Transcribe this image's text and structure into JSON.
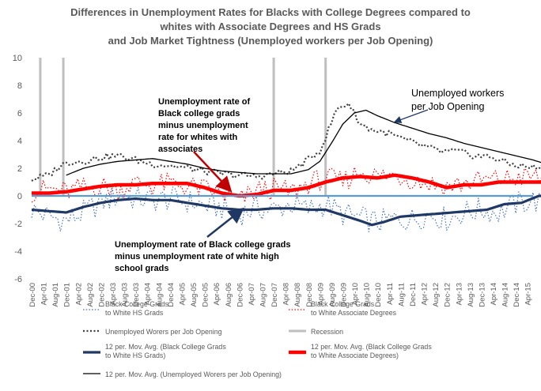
{
  "chart_data": {
    "type": "line",
    "title_lines": [
      "Differences in Unemployment Rates for Blacks with College Degrees compared to",
      "whites with Associate Degrees and HS Grads",
      "and Job Market Tightness (Unemployed workers per Job Opening)"
    ],
    "ylim": [
      -6,
      10
    ],
    "yticks": [
      "10",
      "8",
      "6",
      "4",
      "2",
      "0",
      "-2",
      "-4",
      "-6"
    ],
    "x_tick_labels": [
      "Dec-00",
      "Apr-01",
      "Aug-01",
      "Dec-01",
      "Apr-02",
      "Aug-02",
      "Dec-02",
      "Apr-03",
      "Aug-03",
      "Dec-03",
      "Apr-04",
      "Aug-04",
      "Dec-04",
      "Apr-05",
      "Aug-05",
      "Dec-05",
      "Apr-06",
      "Aug-06",
      "Dec-06",
      "Apr-07",
      "Aug-07",
      "Dec-07",
      "Apr-08",
      "Aug-08",
      "Dec-08",
      "Apr-09",
      "Aug-09",
      "Dec-09",
      "Apr-10",
      "Aug-10",
      "Dec-10",
      "Apr-11",
      "Aug-11",
      "Dec-11",
      "Apr-12",
      "Aug-12",
      "Dec-12",
      "Apr-13",
      "Aug-13",
      "Dec-13",
      "Apr-14",
      "Aug-14",
      "Dec-14",
      "Apr-15"
    ],
    "x_months": {
      "start": "Dec-00",
      "end": "Jun-15"
    },
    "recessions": [
      [
        "Mar-01",
        "Nov-01"
      ],
      [
        "Dec-07",
        "Jun-09"
      ]
    ],
    "series": [
      {
        "name": "Black College Grads to White HS Grads",
        "style": "dotted-blue",
        "anchors": [
          [
            0,
            -1.0
          ],
          [
            6,
            -1.5
          ],
          [
            12,
            -1.8
          ],
          [
            18,
            -1.2
          ],
          [
            24,
            -0.5
          ],
          [
            30,
            0.0
          ],
          [
            36,
            -0.2
          ],
          [
            42,
            -0.3
          ],
          [
            48,
            -0.2
          ],
          [
            54,
            -0.4
          ],
          [
            60,
            -0.7
          ],
          [
            66,
            -0.9
          ],
          [
            72,
            -1.3
          ],
          [
            78,
            -0.9
          ],
          [
            84,
            -1.0
          ],
          [
            90,
            -0.6
          ],
          [
            96,
            -1.0
          ],
          [
            102,
            -0.6
          ],
          [
            108,
            -1.3
          ],
          [
            114,
            -1.6
          ],
          [
            120,
            -1.9
          ],
          [
            126,
            -1.7
          ],
          [
            132,
            -1.7
          ],
          [
            138,
            -1.3
          ],
          [
            144,
            -1.7
          ],
          [
            150,
            -1.2
          ],
          [
            156,
            -1.0
          ],
          [
            162,
            -1.2
          ],
          [
            168,
            -0.6
          ],
          [
            174,
            -0.3
          ],
          [
            180,
            -0.8
          ],
          [
            186,
            -0.7
          ]
        ]
      },
      {
        "name": "Black College Grads to White Associate Degrees",
        "style": "dotted-red",
        "anchors": [
          [
            0,
            0.3
          ],
          [
            6,
            0.5
          ],
          [
            12,
            0.3
          ],
          [
            18,
            0.6
          ],
          [
            24,
            0.7
          ],
          [
            30,
            0.5
          ],
          [
            36,
            0.9
          ],
          [
            42,
            0.8
          ],
          [
            48,
            0.9
          ],
          [
            54,
            0.7
          ],
          [
            60,
            0.5
          ],
          [
            66,
            0.1
          ],
          [
            72,
            -0.4
          ],
          [
            78,
            0.4
          ],
          [
            84,
            0.5
          ],
          [
            90,
            0.3
          ],
          [
            96,
            0.9
          ],
          [
            102,
            1.3
          ],
          [
            108,
            1.0
          ],
          [
            114,
            1.8
          ],
          [
            120,
            1.4
          ],
          [
            126,
            1.5
          ],
          [
            132,
            1.2
          ],
          [
            138,
            0.9
          ],
          [
            144,
            0.7
          ],
          [
            150,
            0.9
          ],
          [
            156,
            1.1
          ],
          [
            162,
            1.2
          ],
          [
            168,
            1.3
          ],
          [
            174,
            1.4
          ],
          [
            180,
            1.0
          ],
          [
            186,
            0.7
          ]
        ]
      },
      {
        "name": "Unemployed Worers per Job Opening",
        "style": "dotted-black",
        "anchors": [
          [
            0,
            1.2
          ],
          [
            6,
            1.5
          ],
          [
            10,
            2.2
          ],
          [
            14,
            2.5
          ],
          [
            18,
            2.5
          ],
          [
            24,
            2.8
          ],
          [
            30,
            2.9
          ],
          [
            36,
            2.6
          ],
          [
            42,
            2.3
          ],
          [
            48,
            2.2
          ],
          [
            54,
            2.0
          ],
          [
            60,
            1.8
          ],
          [
            66,
            1.6
          ],
          [
            72,
            1.5
          ],
          [
            78,
            1.4
          ],
          [
            84,
            1.6
          ],
          [
            90,
            1.8
          ],
          [
            96,
            2.6
          ],
          [
            100,
            3.3
          ],
          [
            102,
            4.2
          ],
          [
            104,
            5.3
          ],
          [
            106,
            6.3
          ],
          [
            108,
            6.5
          ],
          [
            110,
            6.7
          ],
          [
            112,
            6.0
          ],
          [
            114,
            5.2
          ],
          [
            118,
            4.8
          ],
          [
            124,
            4.5
          ],
          [
            130,
            4.0
          ],
          [
            136,
            3.6
          ],
          [
            142,
            3.2
          ],
          [
            148,
            3.2
          ],
          [
            154,
            2.9
          ],
          [
            160,
            2.8
          ],
          [
            166,
            2.3
          ],
          [
            172,
            2.1
          ],
          [
            178,
            2.0
          ],
          [
            183,
            1.6
          ],
          [
            186,
            1.6
          ]
        ]
      },
      {
        "name": "12 per. Mov. Avg. (Black College Grads to White HS Grads)",
        "style": "solid-navy",
        "anchors": [
          [
            0,
            -1.0
          ],
          [
            6,
            -1.1
          ],
          [
            12,
            -1.2
          ],
          [
            18,
            -0.8
          ],
          [
            24,
            -0.5
          ],
          [
            30,
            -0.3
          ],
          [
            36,
            -0.2
          ],
          [
            42,
            -0.3
          ],
          [
            48,
            -0.3
          ],
          [
            54,
            -0.5
          ],
          [
            60,
            -0.7
          ],
          [
            66,
            -0.9
          ],
          [
            72,
            -1.0
          ],
          [
            78,
            -1.0
          ],
          [
            84,
            -0.9
          ],
          [
            90,
            -0.9
          ],
          [
            96,
            -1.0
          ],
          [
            102,
            -1.0
          ],
          [
            108,
            -1.4
          ],
          [
            114,
            -1.8
          ],
          [
            118,
            -2.1
          ],
          [
            122,
            -1.9
          ],
          [
            128,
            -1.5
          ],
          [
            134,
            -1.4
          ],
          [
            140,
            -1.3
          ],
          [
            146,
            -1.2
          ],
          [
            152,
            -1.1
          ],
          [
            158,
            -1.0
          ],
          [
            164,
            -0.6
          ],
          [
            170,
            -0.5
          ],
          [
            176,
            0.0
          ],
          [
            180,
            0.0
          ],
          [
            186,
            -0.1
          ]
        ]
      },
      {
        "name": "12 per. Mov. Avg. (Black College Grads to White Associate Degrees)",
        "style": "solid-red",
        "anchors": [
          [
            0,
            0.2
          ],
          [
            6,
            0.2
          ],
          [
            12,
            0.3
          ],
          [
            18,
            0.5
          ],
          [
            24,
            0.7
          ],
          [
            30,
            0.8
          ],
          [
            36,
            0.8
          ],
          [
            42,
            0.9
          ],
          [
            48,
            0.9
          ],
          [
            54,
            0.9
          ],
          [
            60,
            0.6
          ],
          [
            66,
            0.2
          ],
          [
            72,
            0.0
          ],
          [
            78,
            0.1
          ],
          [
            84,
            0.4
          ],
          [
            90,
            0.4
          ],
          [
            96,
            0.6
          ],
          [
            102,
            1.0
          ],
          [
            108,
            1.3
          ],
          [
            114,
            1.4
          ],
          [
            120,
            1.3
          ],
          [
            126,
            1.5
          ],
          [
            132,
            1.3
          ],
          [
            138,
            1.0
          ],
          [
            144,
            0.6
          ],
          [
            150,
            0.8
          ],
          [
            156,
            0.8
          ],
          [
            162,
            1.0
          ],
          [
            168,
            1.0
          ],
          [
            174,
            1.0
          ],
          [
            180,
            1.0
          ],
          [
            186,
            0.9
          ]
        ]
      },
      {
        "name": "12 per. Mov. Avg. (Unemployed Worers per Job Opening)",
        "style": "solid-black",
        "anchors": [
          [
            12,
            1.5
          ],
          [
            18,
            2.0
          ],
          [
            24,
            2.3
          ],
          [
            30,
            2.5
          ],
          [
            36,
            2.6
          ],
          [
            42,
            2.7
          ],
          [
            48,
            2.5
          ],
          [
            54,
            2.3
          ],
          [
            60,
            2.0
          ],
          [
            66,
            1.8
          ],
          [
            72,
            1.7
          ],
          [
            78,
            1.6
          ],
          [
            84,
            1.6
          ],
          [
            90,
            1.6
          ],
          [
            96,
            1.9
          ],
          [
            100,
            2.5
          ],
          [
            104,
            3.8
          ],
          [
            108,
            5.2
          ],
          [
            112,
            6.0
          ],
          [
            116,
            6.2
          ],
          [
            120,
            5.8
          ],
          [
            126,
            5.3
          ],
          [
            132,
            4.9
          ],
          [
            138,
            4.5
          ],
          [
            144,
            4.2
          ],
          [
            150,
            3.8
          ],
          [
            156,
            3.5
          ],
          [
            162,
            3.2
          ],
          [
            168,
            2.9
          ],
          [
            174,
            2.6
          ],
          [
            180,
            2.2
          ],
          [
            186,
            1.8
          ]
        ]
      }
    ],
    "legend": [
      {
        "label": "Black College Grads\nto White HS Grads",
        "style": "dotted-blue"
      },
      {
        "label": "Black College Grads\nto White Associate Degrees",
        "style": "dotted-red"
      },
      {
        "label": "Unemployed Worers per Job Opening",
        "style": "dotted-black"
      },
      {
        "label": "Recession",
        "style": "recession"
      },
      {
        "label": "12 per. Mov. Avg. (Black College Grads\nto White HS Grads)",
        "style": "solid-navy"
      },
      {
        "label": "12 per. Mov. Avg. (Black College Grads\nto White Associate Degrees)",
        "style": "solid-red"
      },
      {
        "label": "12 per. Mov. Avg. (Unemployed Worers per Job Opening)",
        "style": "solid-black"
      }
    ],
    "annotations": [
      {
        "id": "assoc",
        "lines": [
          "Unemployment rate of",
          "Black college grads",
          "minus unemployment",
          "rate for whites with",
          "associates"
        ]
      },
      {
        "id": "hs",
        "lines": [
          "Unemployment rate of Black college grads",
          "minus unemployment rate of white high",
          "school grads"
        ]
      },
      {
        "id": "jobs",
        "lines": [
          "Unemployed workers",
          "per Job Opening"
        ]
      }
    ],
    "styles": {
      "dotted-blue": {
        "color": "#4472C4",
        "width": 1.2,
        "dash": "1.5 2.2"
      },
      "dotted-red": {
        "color": "#FF0000",
        "width": 1.2,
        "dash": "1.5 2.2"
      },
      "dotted-black": {
        "color": "#404040",
        "width": 2.2,
        "dash": "2 2.5"
      },
      "recession": {
        "color": "#BFBFBF",
        "width": 3
      },
      "solid-navy": {
        "color": "#1F3864",
        "width": 3.2
      },
      "solid-red": {
        "color": "#FF0000",
        "width": 4.5
      },
      "solid-black": {
        "color": "#000000",
        "width": 1.3
      }
    },
    "zero_line_color": "#5B9BD5",
    "recession_top": 10
  }
}
